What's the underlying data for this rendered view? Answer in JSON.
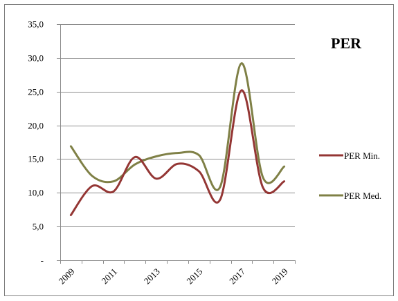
{
  "chart_data": {
    "type": "line",
    "title": "PER",
    "x": [
      "2009",
      "2010",
      "2011",
      "2012",
      "2013",
      "2014",
      "2015",
      "2016",
      "2017",
      "2018",
      "2019"
    ],
    "xtick_labels": [
      "2009",
      "2011",
      "2013",
      "2015",
      "2017",
      "2019"
    ],
    "ylim": [
      0,
      35
    ],
    "yticks": [
      0,
      5,
      10,
      15,
      20,
      25,
      30,
      35
    ],
    "ytick_labels": [
      "-",
      "5,0",
      "10,0",
      "15,0",
      "20,0",
      "25,0",
      "30,0",
      "35,0"
    ],
    "grid": true,
    "legend_position": "right",
    "series": [
      {
        "name": "PER Min.",
        "color": "#943634",
        "values": [
          6.7,
          11.0,
          10.2,
          15.3,
          12.1,
          14.3,
          13.2,
          9.0,
          25.2,
          10.8,
          11.7
        ]
      },
      {
        "name": "PER Med.",
        "color": "#7f8046",
        "values": [
          16.9,
          12.5,
          11.7,
          14.2,
          15.4,
          15.9,
          15.6,
          10.9,
          29.2,
          12.3,
          13.9
        ]
      }
    ]
  }
}
